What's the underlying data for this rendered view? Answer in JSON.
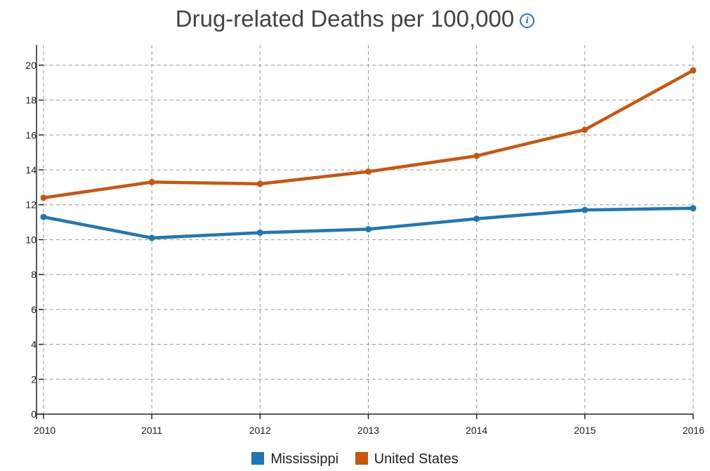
{
  "title": "Drug-related Deaths per 100,000",
  "info_icon": "info-icon",
  "colors": {
    "mississippi": "#1f78b4",
    "united_states": "#c8560f",
    "axis": "#222222",
    "grid": "#999999"
  },
  "chart_data": {
    "type": "line",
    "title": "Drug-related Deaths per 100,000",
    "xlabel": "",
    "ylabel": "",
    "x": [
      2010,
      2011,
      2012,
      2013,
      2014,
      2015,
      2016
    ],
    "ylim": [
      0,
      21
    ],
    "yticks": [
      0,
      2,
      4,
      6,
      8,
      10,
      12,
      14,
      16,
      18,
      20
    ],
    "grid": true,
    "legend_position": "bottom",
    "series": [
      {
        "name": "Mississippi",
        "color": "#1f78b4",
        "values": [
          11.3,
          10.1,
          10.4,
          10.6,
          11.2,
          11.7,
          11.8
        ]
      },
      {
        "name": "United States",
        "color": "#c8560f",
        "values": [
          12.4,
          13.3,
          13.2,
          13.9,
          14.8,
          16.3,
          19.7
        ]
      }
    ]
  },
  "legend": {
    "items": [
      {
        "label": "Mississippi",
        "color": "#1f78b4"
      },
      {
        "label": "United States",
        "color": "#c8560f"
      }
    ]
  }
}
